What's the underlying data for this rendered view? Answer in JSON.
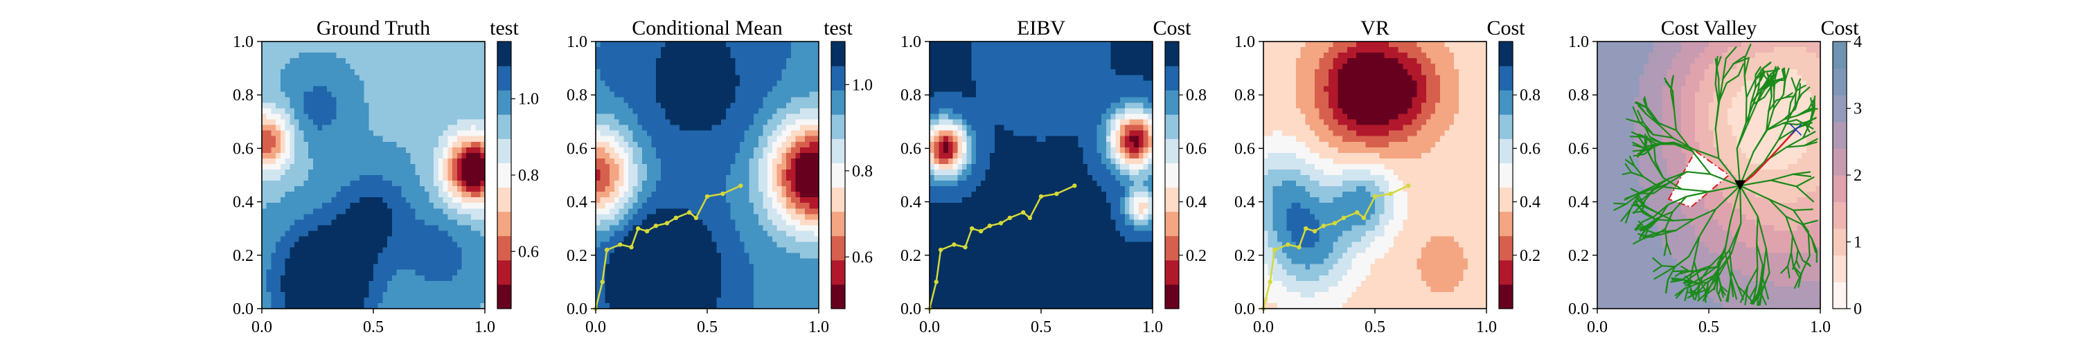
{
  "chart_data": [
    {
      "type": "heatmap",
      "title": "Ground Truth",
      "colorbar_label": "test",
      "xlim": [
        0.0,
        1.0
      ],
      "ylim": [
        0.0,
        1.0
      ],
      "xticks": [
        "0.0",
        "0.5",
        "1.0"
      ],
      "yticks": [
        "0.0",
        "0.2",
        "0.4",
        "0.6",
        "0.8",
        "1.0"
      ],
      "colorbar_range": [
        0.45,
        1.15
      ],
      "colorbar_ticks": [
        "0.6",
        "0.8",
        "1.0"
      ],
      "colorbar_tick_values": [
        0.6,
        0.8,
        1.0
      ],
      "colormap": [
        "#67001f",
        "#b2182b",
        "#d6604d",
        "#f4a582",
        "#fddbc7",
        "#f7f7f7",
        "#d1e5f0",
        "#92c5de",
        "#4393c3",
        "#2166ac",
        "#053061"
      ],
      "field": {
        "base": 0.95,
        "features": [
          {
            "x": 0.95,
            "y": 0.52,
            "s": 0.09,
            "a": -0.55
          },
          {
            "x": 0.02,
            "y": 0.63,
            "s": 0.08,
            "a": -0.35
          },
          {
            "x": 0.28,
            "y": 0.1,
            "s": 0.15,
            "a": 0.3
          },
          {
            "x": 0.5,
            "y": 0.35,
            "s": 0.12,
            "a": 0.15
          },
          {
            "x": 0.25,
            "y": 0.75,
            "s": 0.1,
            "a": 0.1
          },
          {
            "x": 0.8,
            "y": 0.2,
            "s": 0.12,
            "a": 0.1
          }
        ]
      }
    },
    {
      "type": "heatmap",
      "title": "Conditional Mean",
      "colorbar_label": "test",
      "xlim": [
        0.0,
        1.0
      ],
      "ylim": [
        0.0,
        1.0
      ],
      "xticks": [
        "0.0",
        "0.5",
        "1.0"
      ],
      "yticks": [
        "0.0",
        "0.2",
        "0.4",
        "0.6",
        "0.8",
        "1.0"
      ],
      "colorbar_range": [
        0.48,
        1.1
      ],
      "colorbar_ticks": [
        "0.6",
        "0.8",
        "1.0"
      ],
      "colorbar_tick_values": [
        0.6,
        0.8,
        1.0
      ],
      "colormap": [
        "#67001f",
        "#b2182b",
        "#d6604d",
        "#f4a582",
        "#fddbc7",
        "#f7f7f7",
        "#d1e5f0",
        "#92c5de",
        "#4393c3",
        "#2166ac",
        "#053061"
      ],
      "field": {
        "base": 0.98,
        "features": [
          {
            "x": 0.98,
            "y": 0.5,
            "s": 0.14,
            "a": -0.55
          },
          {
            "x": 0.0,
            "y": 0.5,
            "s": 0.12,
            "a": -0.4
          },
          {
            "x": 0.3,
            "y": 0.12,
            "s": 0.16,
            "a": 0.25
          },
          {
            "x": 0.45,
            "y": 0.85,
            "s": 0.2,
            "a": 0.1
          }
        ]
      },
      "path": {
        "color": "#d4d93a",
        "points": [
          [
            0.0,
            0.0
          ],
          [
            0.03,
            0.1
          ],
          [
            0.05,
            0.22
          ],
          [
            0.11,
            0.24
          ],
          [
            0.16,
            0.23
          ],
          [
            0.19,
            0.3
          ],
          [
            0.23,
            0.29
          ],
          [
            0.27,
            0.31
          ],
          [
            0.32,
            0.32
          ],
          [
            0.36,
            0.34
          ],
          [
            0.42,
            0.36
          ],
          [
            0.45,
            0.34
          ],
          [
            0.5,
            0.42
          ],
          [
            0.57,
            0.43
          ],
          [
            0.65,
            0.46
          ]
        ]
      }
    },
    {
      "type": "heatmap",
      "title": "EIBV",
      "colorbar_label": "Cost",
      "xlim": [
        0.0,
        1.0
      ],
      "ylim": [
        0.0,
        1.0
      ],
      "xticks": [
        "0.0",
        "0.5",
        "1.0"
      ],
      "yticks": [
        "0.0",
        "0.2",
        "0.4",
        "0.6",
        "0.8",
        "1.0"
      ],
      "colorbar_range": [
        0.0,
        1.0
      ],
      "colorbar_ticks": [
        "0.2",
        "0.4",
        "0.6",
        "0.8"
      ],
      "colorbar_tick_values": [
        0.2,
        0.4,
        0.6,
        0.8
      ],
      "colormap": [
        "#67001f",
        "#b2182b",
        "#d6604d",
        "#f4a582",
        "#fddbc7",
        "#f7f7f7",
        "#d1e5f0",
        "#92c5de",
        "#4393c3",
        "#2166ac",
        "#053061"
      ],
      "field": {
        "base": 0.92,
        "features": [
          {
            "x": 0.07,
            "y": 0.6,
            "s": 0.07,
            "a": -0.85
          },
          {
            "x": 0.92,
            "y": 0.63,
            "s": 0.08,
            "a": -0.85
          },
          {
            "x": 0.95,
            "y": 0.38,
            "s": 0.05,
            "a": -0.5
          },
          {
            "x": 0.5,
            "y": 0.95,
            "s": 0.15,
            "a": -0.1
          }
        ]
      },
      "path": {
        "color": "#d4d93a",
        "points": [
          [
            0.0,
            0.0
          ],
          [
            0.03,
            0.1
          ],
          [
            0.05,
            0.22
          ],
          [
            0.11,
            0.24
          ],
          [
            0.16,
            0.23
          ],
          [
            0.19,
            0.3
          ],
          [
            0.23,
            0.29
          ],
          [
            0.27,
            0.31
          ],
          [
            0.32,
            0.32
          ],
          [
            0.36,
            0.34
          ],
          [
            0.42,
            0.36
          ],
          [
            0.45,
            0.34
          ],
          [
            0.5,
            0.42
          ],
          [
            0.57,
            0.43
          ],
          [
            0.65,
            0.46
          ]
        ]
      }
    },
    {
      "type": "heatmap",
      "title": "VR",
      "colorbar_label": "Cost",
      "xlim": [
        0.0,
        1.0
      ],
      "ylim": [
        0.0,
        1.0
      ],
      "xticks": [
        "0.0",
        "0.5",
        "1.0"
      ],
      "yticks": [
        "0.0",
        "0.2",
        "0.4",
        "0.6",
        "0.8",
        "1.0"
      ],
      "colorbar_range": [
        0.0,
        1.0
      ],
      "colorbar_ticks": [
        "0.2",
        "0.4",
        "0.6",
        "0.8"
      ],
      "colorbar_tick_values": [
        0.2,
        0.4,
        0.6,
        0.8
      ],
      "colormap": [
        "#67001f",
        "#b2182b",
        "#d6604d",
        "#f4a582",
        "#fddbc7",
        "#f7f7f7",
        "#d1e5f0",
        "#92c5de",
        "#4393c3",
        "#2166ac",
        "#053061"
      ],
      "field": {
        "base": 0.4,
        "features": [
          {
            "x": 0.45,
            "y": 0.82,
            "s": 0.14,
            "a": -0.45
          },
          {
            "x": 0.65,
            "y": 0.82,
            "s": 0.12,
            "a": -0.2
          },
          {
            "x": 0.2,
            "y": 0.25,
            "s": 0.14,
            "a": 0.4
          },
          {
            "x": 0.45,
            "y": 0.4,
            "s": 0.1,
            "a": 0.35
          },
          {
            "x": 0.08,
            "y": 0.45,
            "s": 0.12,
            "a": 0.25
          },
          {
            "x": 0.8,
            "y": 0.17,
            "s": 0.07,
            "a": -0.12
          }
        ]
      },
      "path": {
        "color": "#d4d93a",
        "points": [
          [
            0.0,
            0.0
          ],
          [
            0.03,
            0.1
          ],
          [
            0.05,
            0.22
          ],
          [
            0.11,
            0.24
          ],
          [
            0.16,
            0.23
          ],
          [
            0.19,
            0.3
          ],
          [
            0.23,
            0.29
          ],
          [
            0.27,
            0.31
          ],
          [
            0.32,
            0.32
          ],
          [
            0.36,
            0.34
          ],
          [
            0.42,
            0.36
          ],
          [
            0.45,
            0.34
          ],
          [
            0.5,
            0.42
          ],
          [
            0.57,
            0.43
          ],
          [
            0.65,
            0.46
          ]
        ]
      }
    },
    {
      "type": "heatmap",
      "title": "Cost Valley",
      "colorbar_label": "Cost",
      "xlim": [
        0.0,
        1.0
      ],
      "ylim": [
        0.0,
        1.0
      ],
      "xticks": [
        "0.0",
        "0.5",
        "1.0"
      ],
      "yticks": [
        "0.0",
        "0.2",
        "0.4",
        "0.6",
        "0.8",
        "1.0"
      ],
      "colorbar_range": [
        0,
        4
      ],
      "colorbar_ticks": [
        "0",
        "1",
        "2",
        "3",
        "4"
      ],
      "colorbar_tick_values": [
        0,
        1,
        2,
        3,
        4
      ],
      "colormap": [
        "#fff5f0",
        "#fde0d2",
        "#f7cbbb",
        "#eeb6b2",
        "#dfa3ad",
        "#c99bb0",
        "#b09ab5",
        "#949ab9",
        "#7e97b8",
        "#6f93b3"
      ],
      "field": {
        "base": 3.2,
        "features": [
          {
            "x": 0.85,
            "y": 0.6,
            "s": 0.35,
            "a": -2.3
          },
          {
            "x": 0.95,
            "y": 0.95,
            "s": 0.15,
            "a": -0.6
          },
          {
            "x": 0.6,
            "y": 0.8,
            "s": 0.2,
            "a": -0.8
          }
        ]
      },
      "obstacle": [
        [
          0.32,
          0.41
        ],
        [
          0.44,
          0.59
        ],
        [
          0.59,
          0.5
        ],
        [
          0.42,
          0.38
        ]
      ],
      "current_location": [
        0.64,
        0.46
      ],
      "target_location": [
        0.89,
        0.67
      ],
      "tree_color": "#1a8a1a",
      "path_color": "#d62020"
    }
  ]
}
